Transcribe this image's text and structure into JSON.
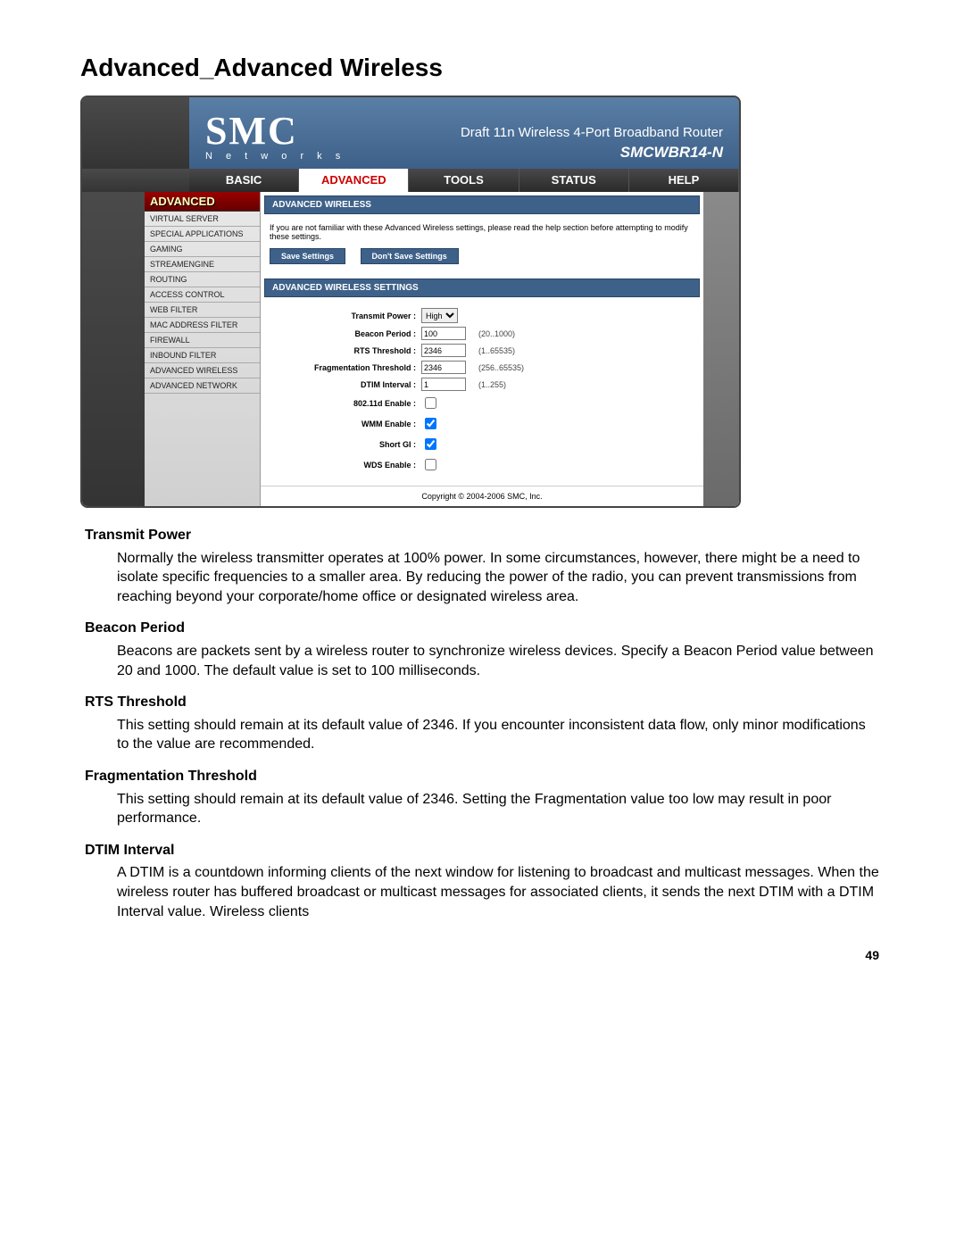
{
  "page": {
    "title": "Advanced_Advanced Wireless",
    "number": "49",
    "copyright": "Copyright © 2004-2006 SMC, Inc."
  },
  "header": {
    "logo_text": "SMC",
    "logo_subtext": "N e t w o r k s",
    "product_line": "Draft 11n Wireless 4-Port Broadband Router",
    "model": "SMCWBR14-N"
  },
  "tabs": {
    "items": [
      "BASIC",
      "ADVANCED",
      "TOOLS",
      "STATUS",
      "HELP"
    ],
    "active_index": 1
  },
  "sidebar": {
    "header": "ADVANCED",
    "items": [
      "VIRTUAL SERVER",
      "SPECIAL APPLICATIONS",
      "GAMING",
      "STREAMENGINE",
      "ROUTING",
      "ACCESS CONTROL",
      "WEB FILTER",
      "MAC ADDRESS FILTER",
      "FIREWALL",
      "INBOUND FILTER",
      "ADVANCED WIRELESS",
      "ADVANCED NETWORK"
    ]
  },
  "panel": {
    "title": "ADVANCED WIRELESS",
    "help": "If you are not familiar with these Advanced Wireless settings, please read the help section before attempting to modify these settings.",
    "save_btn": "Save Settings",
    "dont_save_btn": "Don't Save Settings",
    "settings_title": "ADVANCED WIRELESS SETTINGS",
    "fields": {
      "transmit_power": {
        "label": "Transmit Power :",
        "value": "High"
      },
      "beacon_period": {
        "label": "Beacon Period :",
        "value": "100",
        "range": "(20..1000)"
      },
      "rts_threshold": {
        "label": "RTS Threshold :",
        "value": "2346",
        "range": "(1..65535)"
      },
      "frag_threshold": {
        "label": "Fragmentation Threshold :",
        "value": "2346",
        "range": "(256..65535)"
      },
      "dtim_interval": {
        "label": "DTIM Interval :",
        "value": "1",
        "range": "(1..255)"
      },
      "d80211_enable": {
        "label": "802.11d Enable :",
        "checked": false
      },
      "wmm_enable": {
        "label": "WMM Enable :",
        "checked": true
      },
      "short_gi": {
        "label": "Short GI :",
        "checked": true
      },
      "wds_enable": {
        "label": "WDS Enable :",
        "checked": false
      }
    }
  },
  "doc": {
    "sections": [
      {
        "heading": "Transmit Power",
        "body": "Normally the wireless transmitter operates at 100% power. In some circumstances, however, there might be a need to isolate specific frequencies to a smaller area. By reducing the power of the radio, you can prevent transmissions from reaching beyond your corporate/home office or designated wireless area."
      },
      {
        "heading": "Beacon Period",
        "body": "Beacons are packets sent by a wireless router to synchronize wireless devices. Specify a Beacon Period value between 20 and 1000. The default value is set to 100 milliseconds."
      },
      {
        "heading": "RTS Threshold",
        "body": "This setting should remain at its default value of 2346. If you encounter inconsistent data flow, only minor modifications to the value are recommended."
      },
      {
        "heading": "Fragmentation Threshold",
        "body": "This setting should remain at its default value of 2346. Setting the Fragmentation value too low may result in poor performance."
      },
      {
        "heading": "DTIM Interval",
        "body": "A DTIM is a countdown informing clients of the next window for listening to broadcast and multicast messages. When the wireless router has buffered broadcast or multicast messages for associated clients, it sends the next DTIM with a DTIM Interval value. Wireless clients"
      }
    ]
  }
}
